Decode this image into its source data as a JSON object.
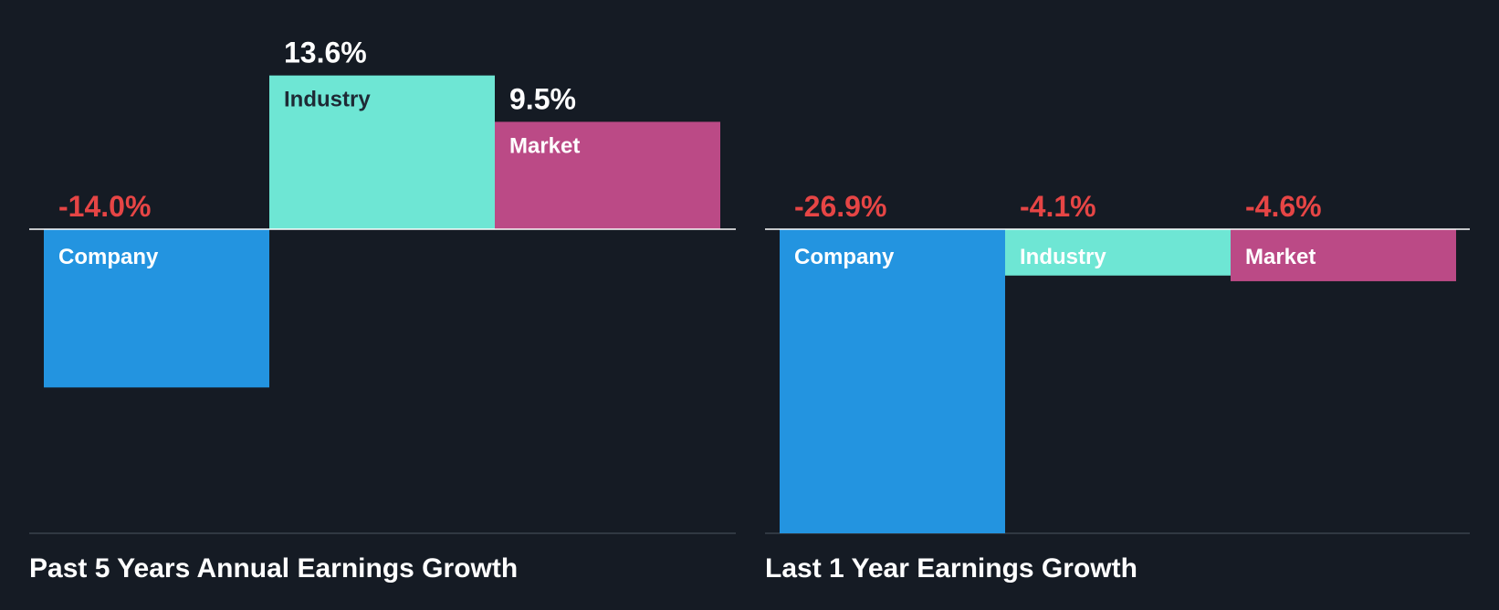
{
  "colors": {
    "background": "#151b24",
    "company": "#2394e0",
    "industry": "#6ee6d4",
    "market": "#bb4a86",
    "negative_text": "#e64545",
    "positive_text": "#ffffff",
    "dark_label": "#1e2a35"
  },
  "chart_data": [
    {
      "type": "bar",
      "title": "Past 5 Years Annual Earnings Growth",
      "categories": [
        "Company",
        "Industry",
        "Market"
      ],
      "values": [
        -14.0,
        13.6,
        9.5
      ],
      "value_labels": [
        "-14.0%",
        "13.6%",
        "9.5%"
      ],
      "unit": "%",
      "ylim": [
        -27.0,
        13.6
      ],
      "grid": false,
      "legend": "none"
    },
    {
      "type": "bar",
      "title": "Last 1 Year Earnings Growth",
      "categories": [
        "Company",
        "Industry",
        "Market"
      ],
      "values": [
        -26.9,
        -4.1,
        -4.6
      ],
      "value_labels": [
        "-26.9%",
        "-4.1%",
        "-4.6%"
      ],
      "unit": "%",
      "ylim": [
        -26.9,
        0
      ],
      "grid": false,
      "legend": "none"
    }
  ]
}
